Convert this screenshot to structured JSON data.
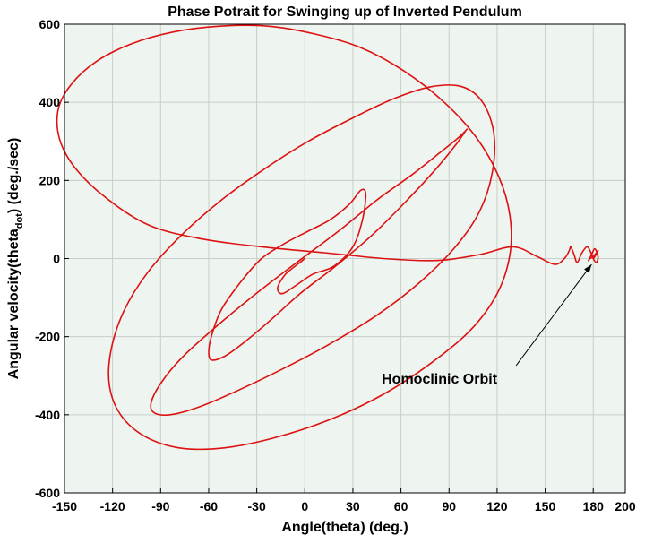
{
  "chart_data": {
    "type": "line",
    "title": "Phase Potrait for Swinging up of Inverted Pendulum",
    "xlabel": "Angle(theta) (deg.)",
    "ylabel": {
      "prefix": "Angular velocity(theta",
      "subscript": "dot",
      "suffix": ") (deg./sec)"
    },
    "xlim": [
      -150,
      200
    ],
    "ylim": [
      -600,
      600
    ],
    "xticks": [
      -150,
      -120,
      -90,
      -60,
      -30,
      0,
      30,
      60,
      90,
      120,
      150,
      180,
      200
    ],
    "yticks": [
      -600,
      -400,
      -200,
      0,
      200,
      400,
      600
    ],
    "xtick_labels": [
      "-150",
      "-120",
      "-90",
      "-60",
      "-30",
      "0",
      "30",
      "60",
      "90",
      "120",
      "150",
      "180",
      "200"
    ],
    "ytick_labels": [
      "-600",
      "-400",
      "-200",
      "0",
      "200",
      "400",
      "600"
    ],
    "grid": true,
    "background_color": "#eef4ef",
    "line_color": "#dd1111",
    "series": [
      {
        "x": [
          0,
          -3,
          -12,
          -17,
          -14,
          -6,
          5,
          18,
          30,
          36,
          38,
          35,
          28,
          16,
          2,
          -12,
          -27,
          -40,
          -52,
          -58,
          -60,
          -58,
          -50,
          -38,
          -22,
          -3,
          19,
          42,
          64,
          82,
          94,
          100,
          101,
          96,
          84,
          67,
          45,
          21,
          -5,
          -32,
          -57,
          -77,
          -90,
          -96,
          -94,
          -84,
          -66,
          -43,
          -15,
          15,
          45,
          72,
          94,
          109,
          117,
          118,
          111,
          98,
          79,
          56,
          30,
          2,
          -25,
          -52,
          -77,
          -98,
          -113,
          -121,
          -122,
          -115,
          -100,
          -78,
          -51,
          -20,
          14,
          48,
          78,
          103,
          120,
          128,
          128,
          121,
          107,
          87,
          62,
          35,
          6,
          -23,
          -53,
          -82,
          -108,
          -130,
          -146,
          -154,
          -153,
          -143,
          -124,
          -97,
          -64,
          -27,
          12,
          49,
          82,
          109,
          130,
          145,
          156,
          162,
          165,
          166,
          168,
          170,
          173,
          176,
          178,
          180,
          182,
          183,
          181,
          179,
          177,
          178,
          180,
          182,
          183,
          181,
          180
        ],
        "y": [
          0,
          -10,
          -40,
          -75,
          -90,
          -70,
          -40,
          -20,
          30,
          100,
          165,
          175,
          140,
          100,
          70,
          40,
          0,
          -60,
          -130,
          -195,
          -240,
          -260,
          -250,
          -215,
          -160,
          -90,
          -20,
          60,
          150,
          230,
          290,
          325,
          330,
          310,
          270,
          215,
          150,
          70,
          -10,
          -95,
          -180,
          -255,
          -320,
          -370,
          -395,
          -400,
          -380,
          -340,
          -285,
          -220,
          -145,
          -60,
          30,
          120,
          220,
          320,
          400,
          440,
          440,
          410,
          360,
          300,
          230,
          150,
          60,
          -35,
          -135,
          -235,
          -325,
          -400,
          -455,
          -485,
          -485,
          -460,
          -415,
          -350,
          -270,
          -185,
          -90,
          10,
          110,
          210,
          310,
          400,
          480,
          540,
          575,
          595,
          595,
          580,
          550,
          505,
          445,
          380,
          305,
          230,
          155,
          85,
          50,
          30,
          15,
          0,
          -5,
          10,
          30,
          5,
          -15,
          0,
          20,
          30,
          10,
          -10,
          15,
          30,
          20,
          0,
          -10,
          5,
          25,
          10,
          -5,
          0,
          5,
          15,
          20,
          5,
          0
        ]
      }
    ],
    "annotations": [
      {
        "text": "Homoclinic Orbit",
        "x": 48,
        "y": -320,
        "arrow_to": [
          179,
          -15
        ]
      }
    ]
  }
}
